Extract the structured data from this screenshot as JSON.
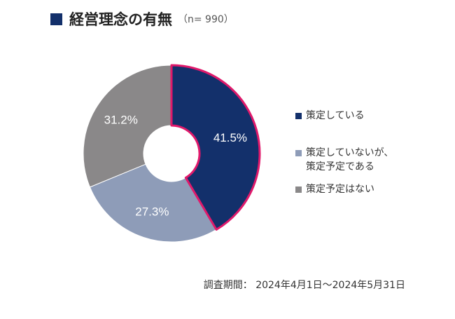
{
  "title": "経営理念の有無",
  "sample_size": "（n= 990）",
  "footer": "調査期間： 2024年4月1日～2024年5月31日",
  "colors": {
    "title_marker": "#13306b",
    "highlight_border": "#e0196b"
  },
  "chart_data": {
    "type": "pie",
    "donut": true,
    "title": "経営理念の有無",
    "legend_position": "right",
    "series": [
      {
        "name": "策定している",
        "value": 41.5,
        "label": "41.5%",
        "color": "#13306b",
        "highlighted": true
      },
      {
        "name": "策定していないが、\n策定予定である",
        "value": 27.3,
        "label": "27.3%",
        "color": "#8e9cb8",
        "highlighted": false
      },
      {
        "name": "策定予定はない",
        "value": 31.2,
        "label": "31.2%",
        "color": "#8a8889",
        "highlighted": false
      }
    ]
  }
}
